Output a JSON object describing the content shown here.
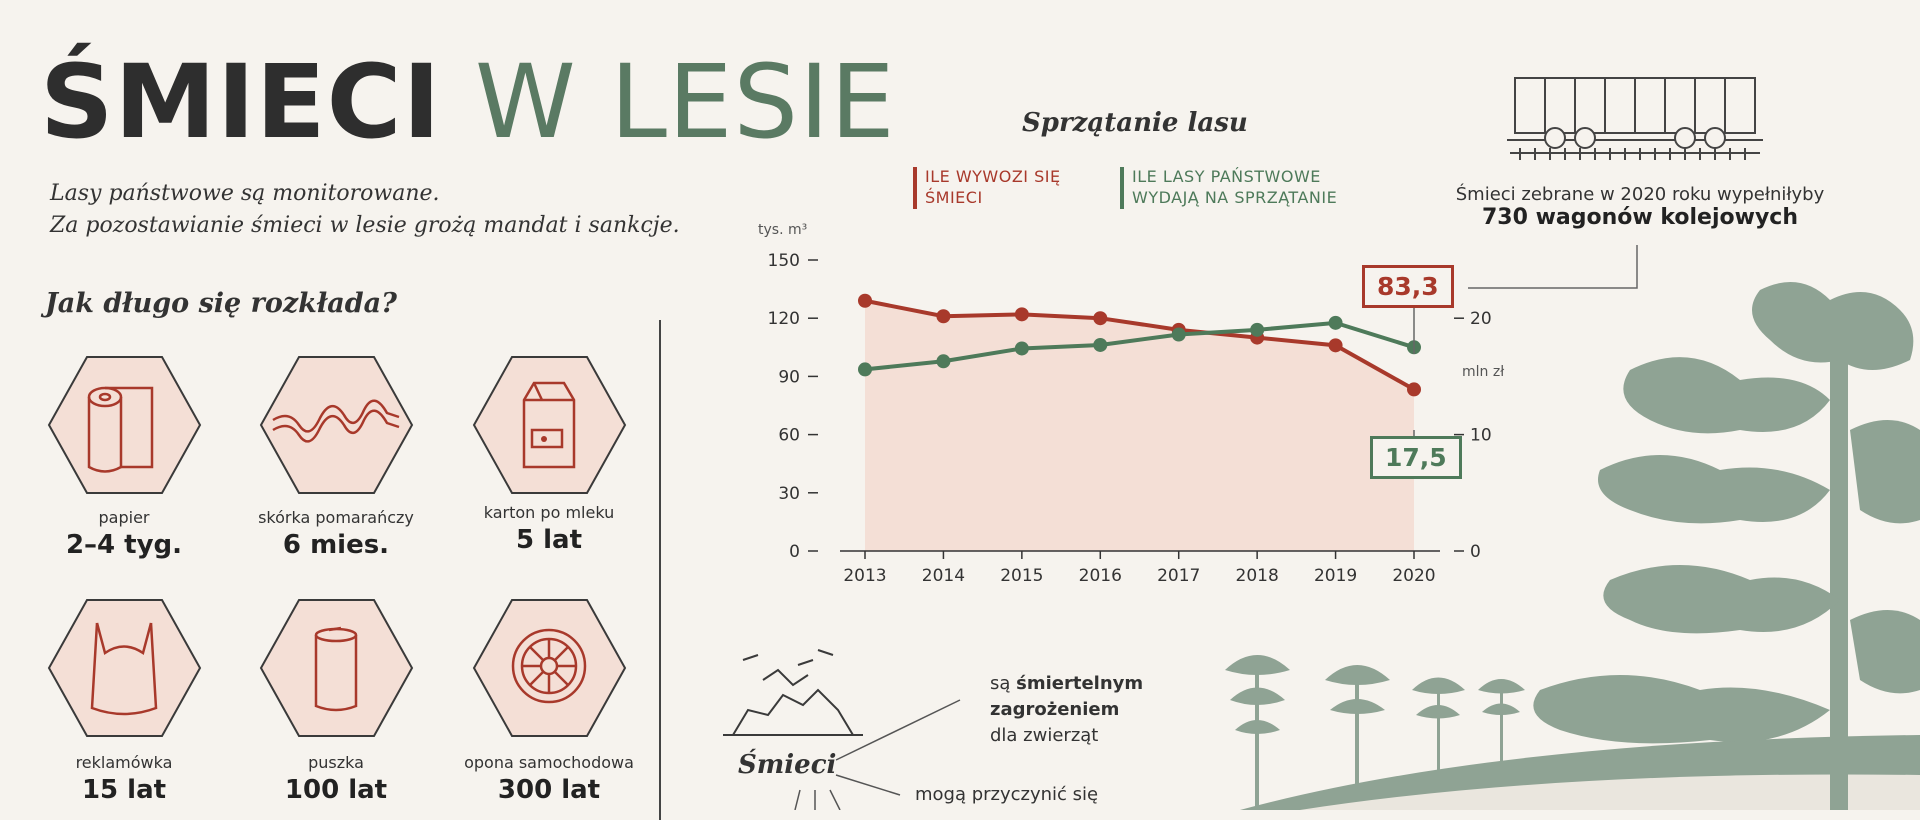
{
  "title": {
    "part1": "ŚMIECI",
    "part2": "W LESIE"
  },
  "intro": {
    "line1": "Lasy państwowe są monitorowane.",
    "line2": "Za pozostawianie śmieci w lesie grożą mandat i sankcje."
  },
  "decomposition": {
    "heading": "Jak długo się rozkłada?",
    "items": [
      {
        "name": "papier",
        "time": "2–4 tyg.",
        "icon": "paper-roll-icon"
      },
      {
        "name": "skórka pomarańczy",
        "time": "6 mies.",
        "icon": "orange-peel-icon"
      },
      {
        "name": "karton po mleku",
        "time": "5 lat",
        "icon": "milk-carton-icon"
      },
      {
        "name": "reklamówka",
        "time": "15 lat",
        "icon": "plastic-bag-icon"
      },
      {
        "name": "puszka",
        "time": "100 lat",
        "icon": "can-icon"
      },
      {
        "name": "opona samochodowa",
        "time": "300 lat",
        "icon": "tire-icon"
      }
    ]
  },
  "chart_title": "Sprzątanie lasu",
  "legend": {
    "series1": "ILE WYWOZI SIĘ ŚMIECI",
    "series1_line1": "ILE WYWOZI SIĘ",
    "series1_line2": "ŚMIECI",
    "series2": "ILE LASY PAŃSTWOWE WYDAJĄ NA SPRZĄTANIE",
    "series2_line1": "ILE LASY PAŃSTWOWE",
    "series2_line2": "WYDAJĄ NA SPRZĄTANIE"
  },
  "callouts": {
    "waste_2020": "83,3",
    "cost_2020": "17,5"
  },
  "wagon": {
    "line1": "Śmieci zebrane w 2020 roku wypełniłyby",
    "line2": "730 wagonów kolejowych"
  },
  "smieci_section": {
    "label": "Śmieci",
    "effect1_a": "są ",
    "effect1_b": "śmiertelnym",
    "effect1_c": "zagrożeniem",
    "effect1_d": "dla zwierząt",
    "effect2": "mogą przyczynić się"
  },
  "colors": {
    "red": "#a8392b",
    "green": "#4e7a5a",
    "area": "#f4dfd6",
    "dark": "#2e2e2e",
    "tree": "#8fa394"
  },
  "chart_data": {
    "type": "line",
    "title": "Sprzątanie lasu",
    "x": [
      2013,
      2014,
      2015,
      2016,
      2017,
      2018,
      2019,
      2020
    ],
    "y_left_unit": "tys. m³",
    "y_right_unit": "mln zł",
    "y_left_ticks": [
      "0",
      "30",
      "60",
      "90",
      "120",
      "150"
    ],
    "y_right_ticks": [
      "0",
      "10",
      "20"
    ],
    "y_left_lim": [
      0,
      150
    ],
    "y_right_lim": [
      0,
      25
    ],
    "series": [
      {
        "name": "ILE WYWOZI SIĘ ŚMIECI",
        "axis": "left",
        "color": "#a8392b",
        "values": [
          129,
          121,
          122,
          120,
          114,
          110,
          106,
          83.3
        ]
      },
      {
        "name": "ILE LASY PAŃSTWOWE WYDAJĄ NA SPRZĄTANIE",
        "axis": "right",
        "color": "#4e7a5a",
        "values": [
          15.6,
          16.3,
          17.4,
          17.7,
          18.6,
          19.0,
          19.6,
          17.5
        ]
      }
    ]
  }
}
